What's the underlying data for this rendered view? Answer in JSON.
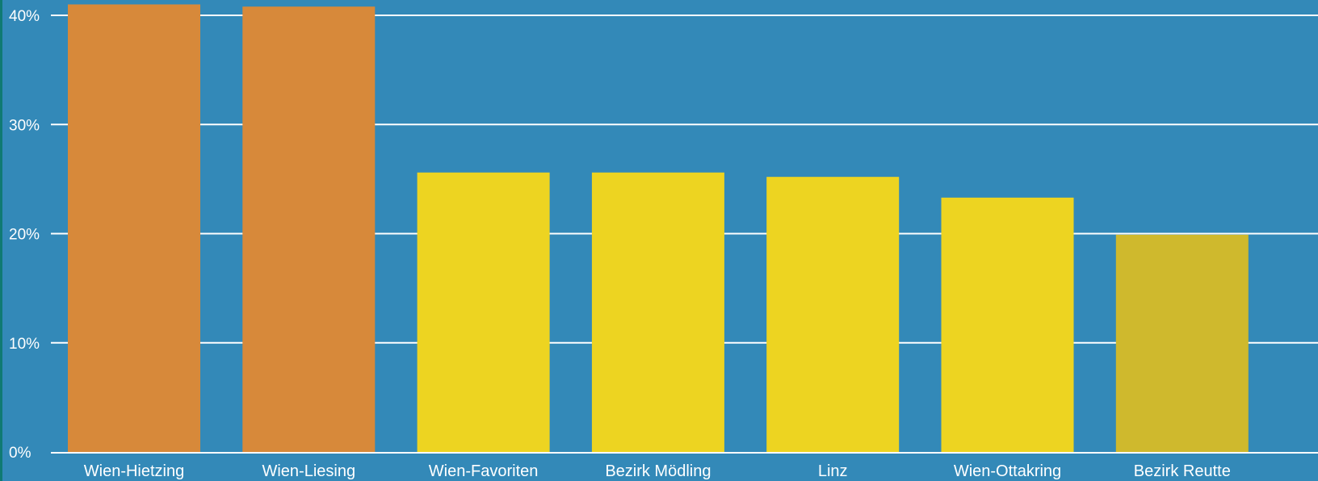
{
  "chart_data": {
    "type": "bar",
    "title": "",
    "xlabel": "",
    "ylabel": "",
    "categories": [
      "Wien-Hietzing",
      "Wien-Liesing",
      "Wien-Favoriten",
      "Bezirk Mödling",
      "Linz",
      "Wien-Ottakring",
      "Bezirk Reutte"
    ],
    "values": [
      41.0,
      40.8,
      25.6,
      25.6,
      25.2,
      23.3,
      19.9
    ],
    "bar_colors": [
      "#d7893a",
      "#d7893a",
      "#edd421",
      "#edd421",
      "#edd421",
      "#edd421",
      "#cfb92d"
    ],
    "ylim": [
      0,
      40
    ],
    "yticks": [
      0,
      10,
      20,
      30,
      40
    ],
    "ytick_labels": [
      "0%",
      "10%",
      "20%",
      "30%",
      "40%"
    ],
    "grid": true,
    "colors": {
      "background": "#3389b8",
      "frame": "#0f7a73",
      "gridline": "#ffffff",
      "text": "#ffffff"
    }
  }
}
